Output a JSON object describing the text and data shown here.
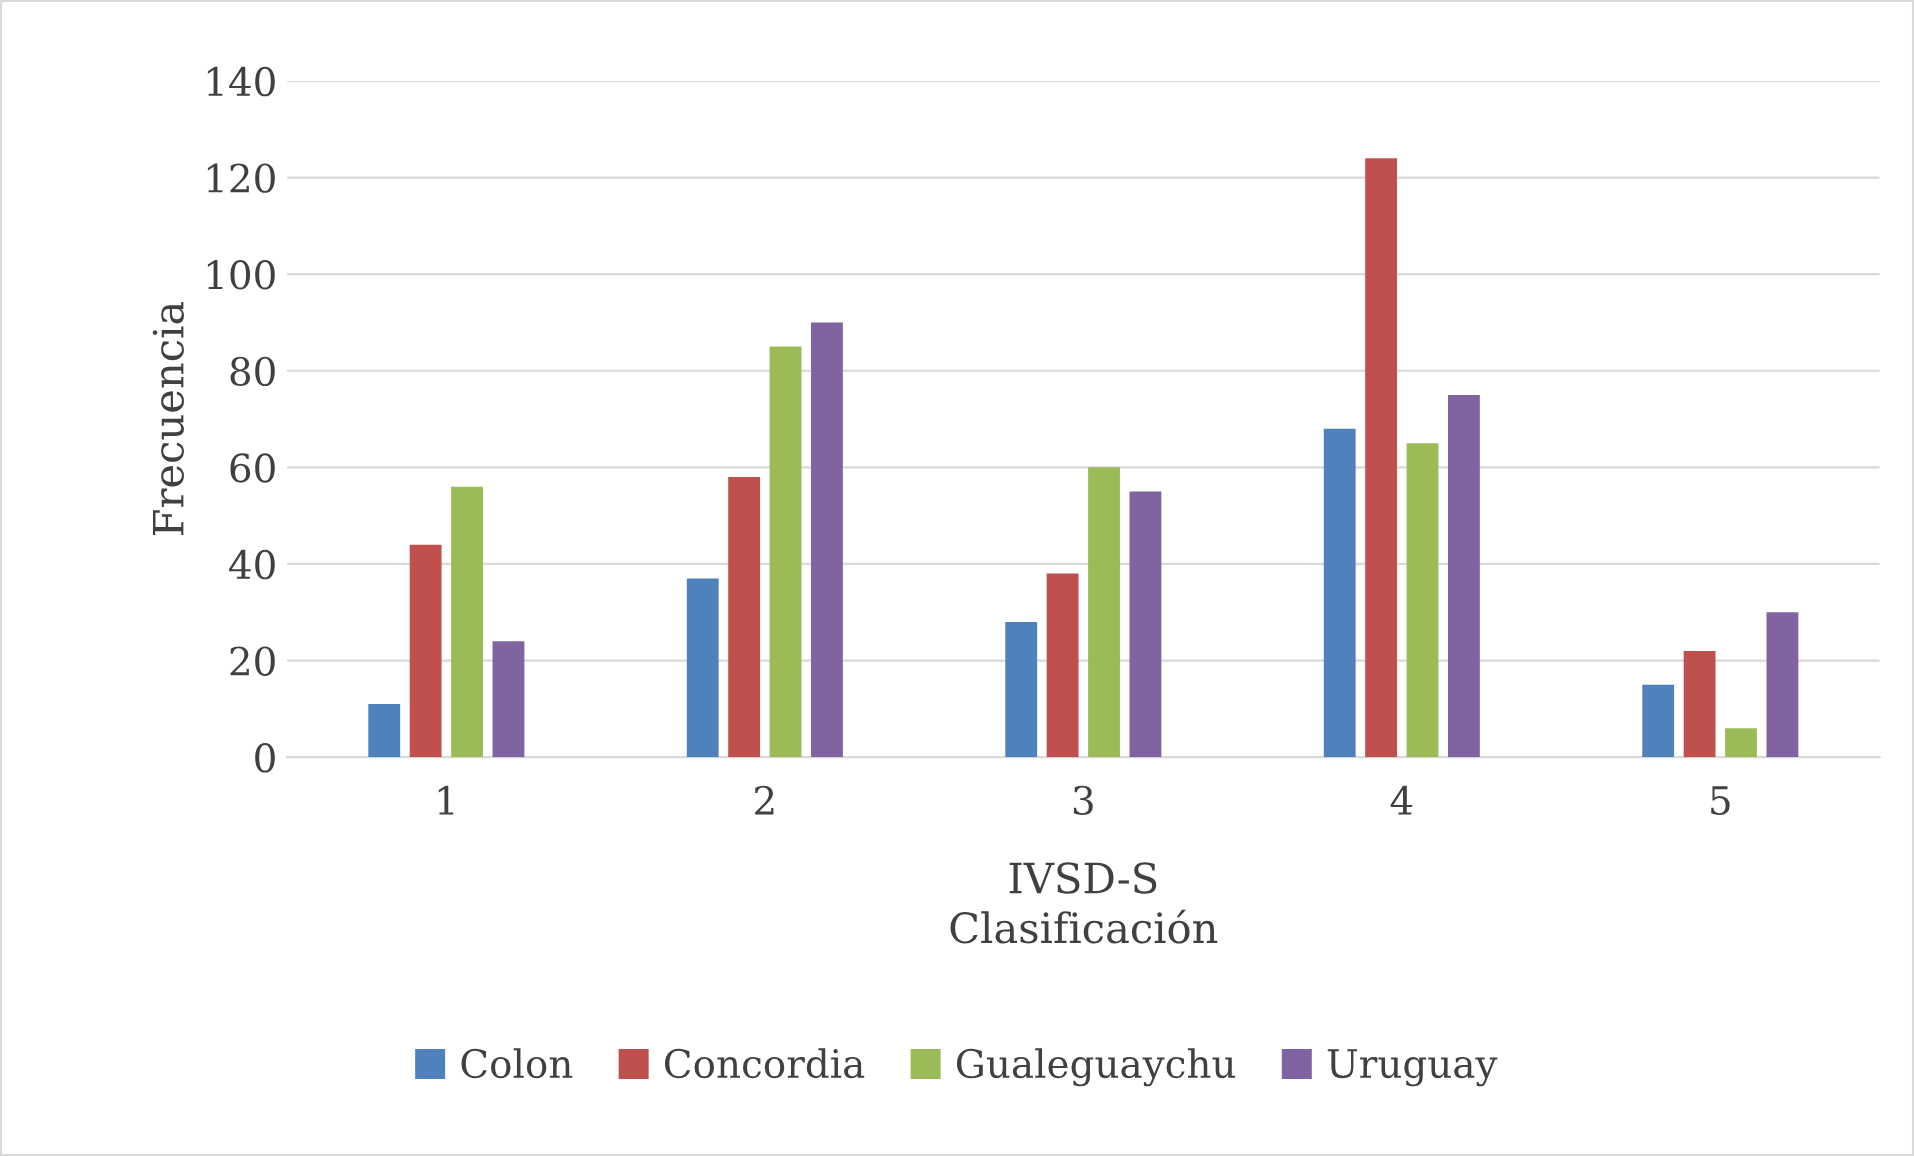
{
  "chart_data": {
    "type": "bar",
    "xlabel": "IVSD-S\nClasificación",
    "ylabel": "Frecuencia",
    "categories": [
      "1",
      "2",
      "3",
      "4",
      "5"
    ],
    "series": [
      {
        "name": "Colon",
        "color": "#4f81bd",
        "values": [
          11,
          37,
          28,
          68,
          15
        ]
      },
      {
        "name": "Concordia",
        "color": "#c0504d",
        "values": [
          44,
          58,
          38,
          124,
          22
        ]
      },
      {
        "name": "Gualeguaychu",
        "color": "#9bbb59",
        "values": [
          56,
          85,
          60,
          65,
          6
        ]
      },
      {
        "name": "Uruguay",
        "color": "#8064a2",
        "values": [
          24,
          90,
          55,
          75,
          30
        ]
      }
    ],
    "ylim": [
      0,
      140
    ],
    "yticks": [
      0,
      20,
      40,
      60,
      80,
      100,
      120,
      140
    ],
    "grid": "y",
    "legend": "bottom"
  }
}
